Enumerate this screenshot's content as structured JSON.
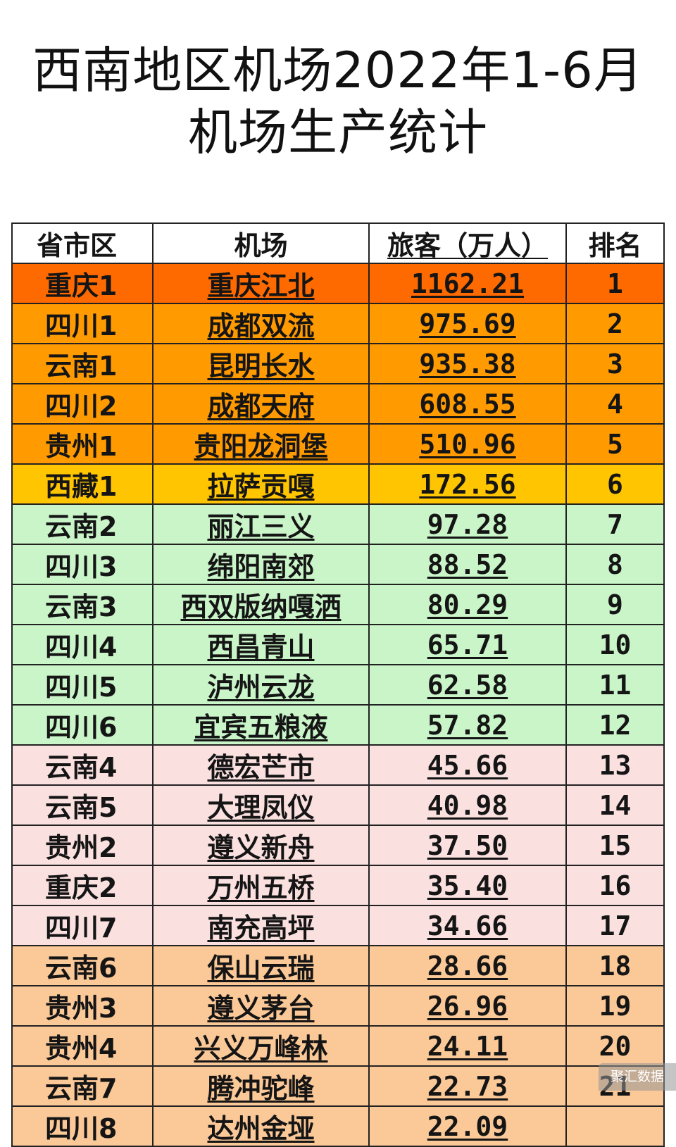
{
  "title": {
    "line1": "西南地区机场2022年1-6月",
    "line2": "机场生产统计"
  },
  "table": {
    "headers": {
      "region": "省市区",
      "airport": "机场",
      "passengers": "旅客（万人）",
      "rank": "排名"
    },
    "tier_colors": {
      "top": "#ff6a00",
      "orange": "#ff9a00",
      "yellow": "#ffc500",
      "green": "#c9f5c9",
      "pink": "#fbe0e0",
      "peach": "#fbc898"
    },
    "rows": [
      {
        "region": "重庆1",
        "airport": "重庆江北",
        "passengers": "1162.21",
        "rank": "1",
        "tier": "top"
      },
      {
        "region": "四川1",
        "airport": "成都双流",
        "passengers": "975.69",
        "rank": "2",
        "tier": "orange"
      },
      {
        "region": "云南1",
        "airport": "昆明长水",
        "passengers": "935.38",
        "rank": "3",
        "tier": "orange"
      },
      {
        "region": "四川2",
        "airport": "成都天府",
        "passengers": "608.55",
        "rank": "4",
        "tier": "orange"
      },
      {
        "region": "贵州1",
        "airport": "贵阳龙洞堡",
        "passengers": "510.96",
        "rank": "5",
        "tier": "orange"
      },
      {
        "region": "西藏1",
        "airport": "拉萨贡嘎",
        "passengers": "172.56",
        "rank": "6",
        "tier": "yellow"
      },
      {
        "region": "云南2",
        "airport": "丽江三义",
        "passengers": "97.28",
        "rank": "7",
        "tier": "green"
      },
      {
        "region": "四川3",
        "airport": "绵阳南郊",
        "passengers": "88.52",
        "rank": "8",
        "tier": "green"
      },
      {
        "region": "云南3",
        "airport": "西双版纳嘎洒",
        "passengers": "80.29",
        "rank": "9",
        "tier": "green"
      },
      {
        "region": "四川4",
        "airport": "西昌青山",
        "passengers": "65.71",
        "rank": "10",
        "tier": "green"
      },
      {
        "region": "四川5",
        "airport": "泸州云龙",
        "passengers": "62.58",
        "rank": "11",
        "tier": "green"
      },
      {
        "region": "四川6",
        "airport": "宜宾五粮液",
        "passengers": "57.82",
        "rank": "12",
        "tier": "green"
      },
      {
        "region": "云南4",
        "airport": "德宏芒市",
        "passengers": "45.66",
        "rank": "13",
        "tier": "pink"
      },
      {
        "region": "云南5",
        "airport": "大理凤仪",
        "passengers": "40.98",
        "rank": "14",
        "tier": "pink"
      },
      {
        "region": "贵州2",
        "airport": "遵义新舟",
        "passengers": "37.50",
        "rank": "15",
        "tier": "pink"
      },
      {
        "region": "重庆2",
        "airport": "万州五桥",
        "passengers": "35.40",
        "rank": "16",
        "tier": "pink"
      },
      {
        "region": "四川7",
        "airport": "南充高坪",
        "passengers": "34.66",
        "rank": "17",
        "tier": "pink"
      },
      {
        "region": "云南6",
        "airport": "保山云瑞",
        "passengers": "28.66",
        "rank": "18",
        "tier": "peach"
      },
      {
        "region": "贵州3",
        "airport": "遵义茅台",
        "passengers": "26.96",
        "rank": "19",
        "tier": "peach"
      },
      {
        "region": "贵州4",
        "airport": "兴义万峰林",
        "passengers": "24.11",
        "rank": "20",
        "tier": "peach"
      },
      {
        "region": "云南7",
        "airport": "腾冲驼峰",
        "passengers": "22.73",
        "rank": "21",
        "tier": "peach"
      },
      {
        "region": "四川8",
        "airport": "达州金垭",
        "passengers": "22.09",
        "rank": "",
        "tier": "peach"
      }
    ]
  },
  "watermark": "聚汇数据"
}
